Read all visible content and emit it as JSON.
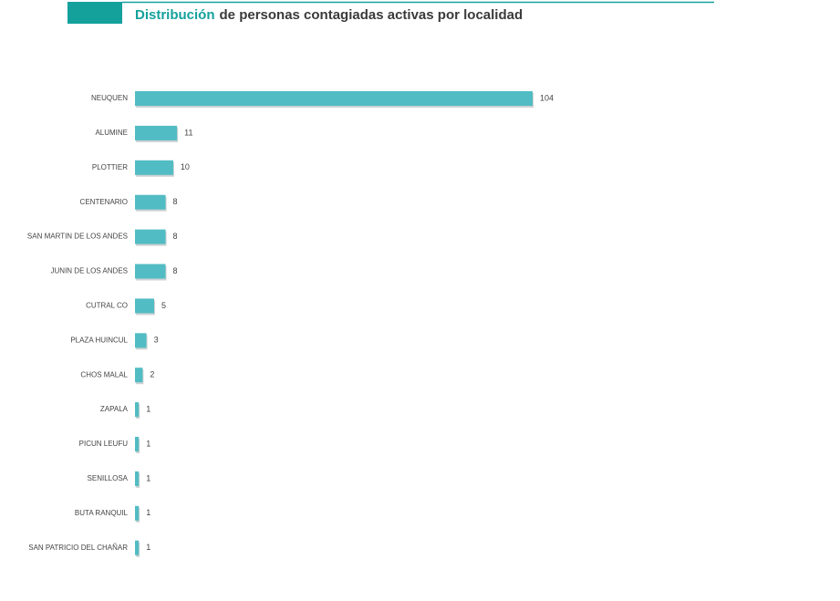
{
  "chart_data": {
    "type": "barh",
    "title": {
      "highlight": "Distribución",
      "rest": "de personas contagiadas activas por localidad"
    },
    "categories": [
      "NEUQUEN",
      "ALUMINE",
      "PLOTTIER",
      "CENTENARIO",
      "SAN MARTIN DE LOS ANDES",
      "JUNIN DE LOS ANDES",
      "CUTRAL CO",
      "PLAZA HUINCUL",
      "CHOS MALAL",
      "ZAPALA",
      "PICUN LEUFU",
      "SENILLOSA",
      "BUTA RANQUIL",
      "SAN PATRICIO DEL CHAÑAR"
    ],
    "values": [
      104,
      11,
      10,
      8,
      8,
      8,
      5,
      3,
      2,
      1,
      1,
      1,
      1,
      1
    ],
    "color": "#52bcc4"
  }
}
